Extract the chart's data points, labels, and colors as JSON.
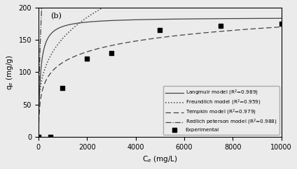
{
  "title": "(b)",
  "xlabel": "C$_e$ (mg/L)",
  "ylabel": "q$_e$ (mg/g)",
  "xlim": [
    0,
    10000
  ],
  "ylim": [
    0,
    200
  ],
  "xticks": [
    0,
    2000,
    4000,
    6000,
    8000,
    10000
  ],
  "yticks": [
    0,
    50,
    100,
    150,
    200
  ],
  "experimental_x": [
    10,
    500,
    1000,
    2000,
    3000,
    5000,
    7500,
    10000
  ],
  "experimental_y": [
    0,
    0,
    75,
    121,
    130,
    165,
    172,
    175
  ],
  "langmuir_params": {
    "qmax": 185.0,
    "KL": 0.012
  },
  "freundlich_params": {
    "KF": 22.0,
    "n": 0.28
  },
  "tempkin_params": {
    "AT": 0.12,
    "BT": 24.0
  },
  "redlich_peterson_params": {
    "KRP": 3.5,
    "aRP": 0.025,
    "g": 0.82
  },
  "background_color": "#ebebeb",
  "line_color": "#444444",
  "legend_labels": [
    "Langmuir model (R$^2$=0.989)",
    "Freundlich model (R$^2$=0.959)",
    "Tempkin model (R$^2$=0.979)",
    "Redlich peterson model (R$^2$=0.988)",
    "Experimental"
  ]
}
